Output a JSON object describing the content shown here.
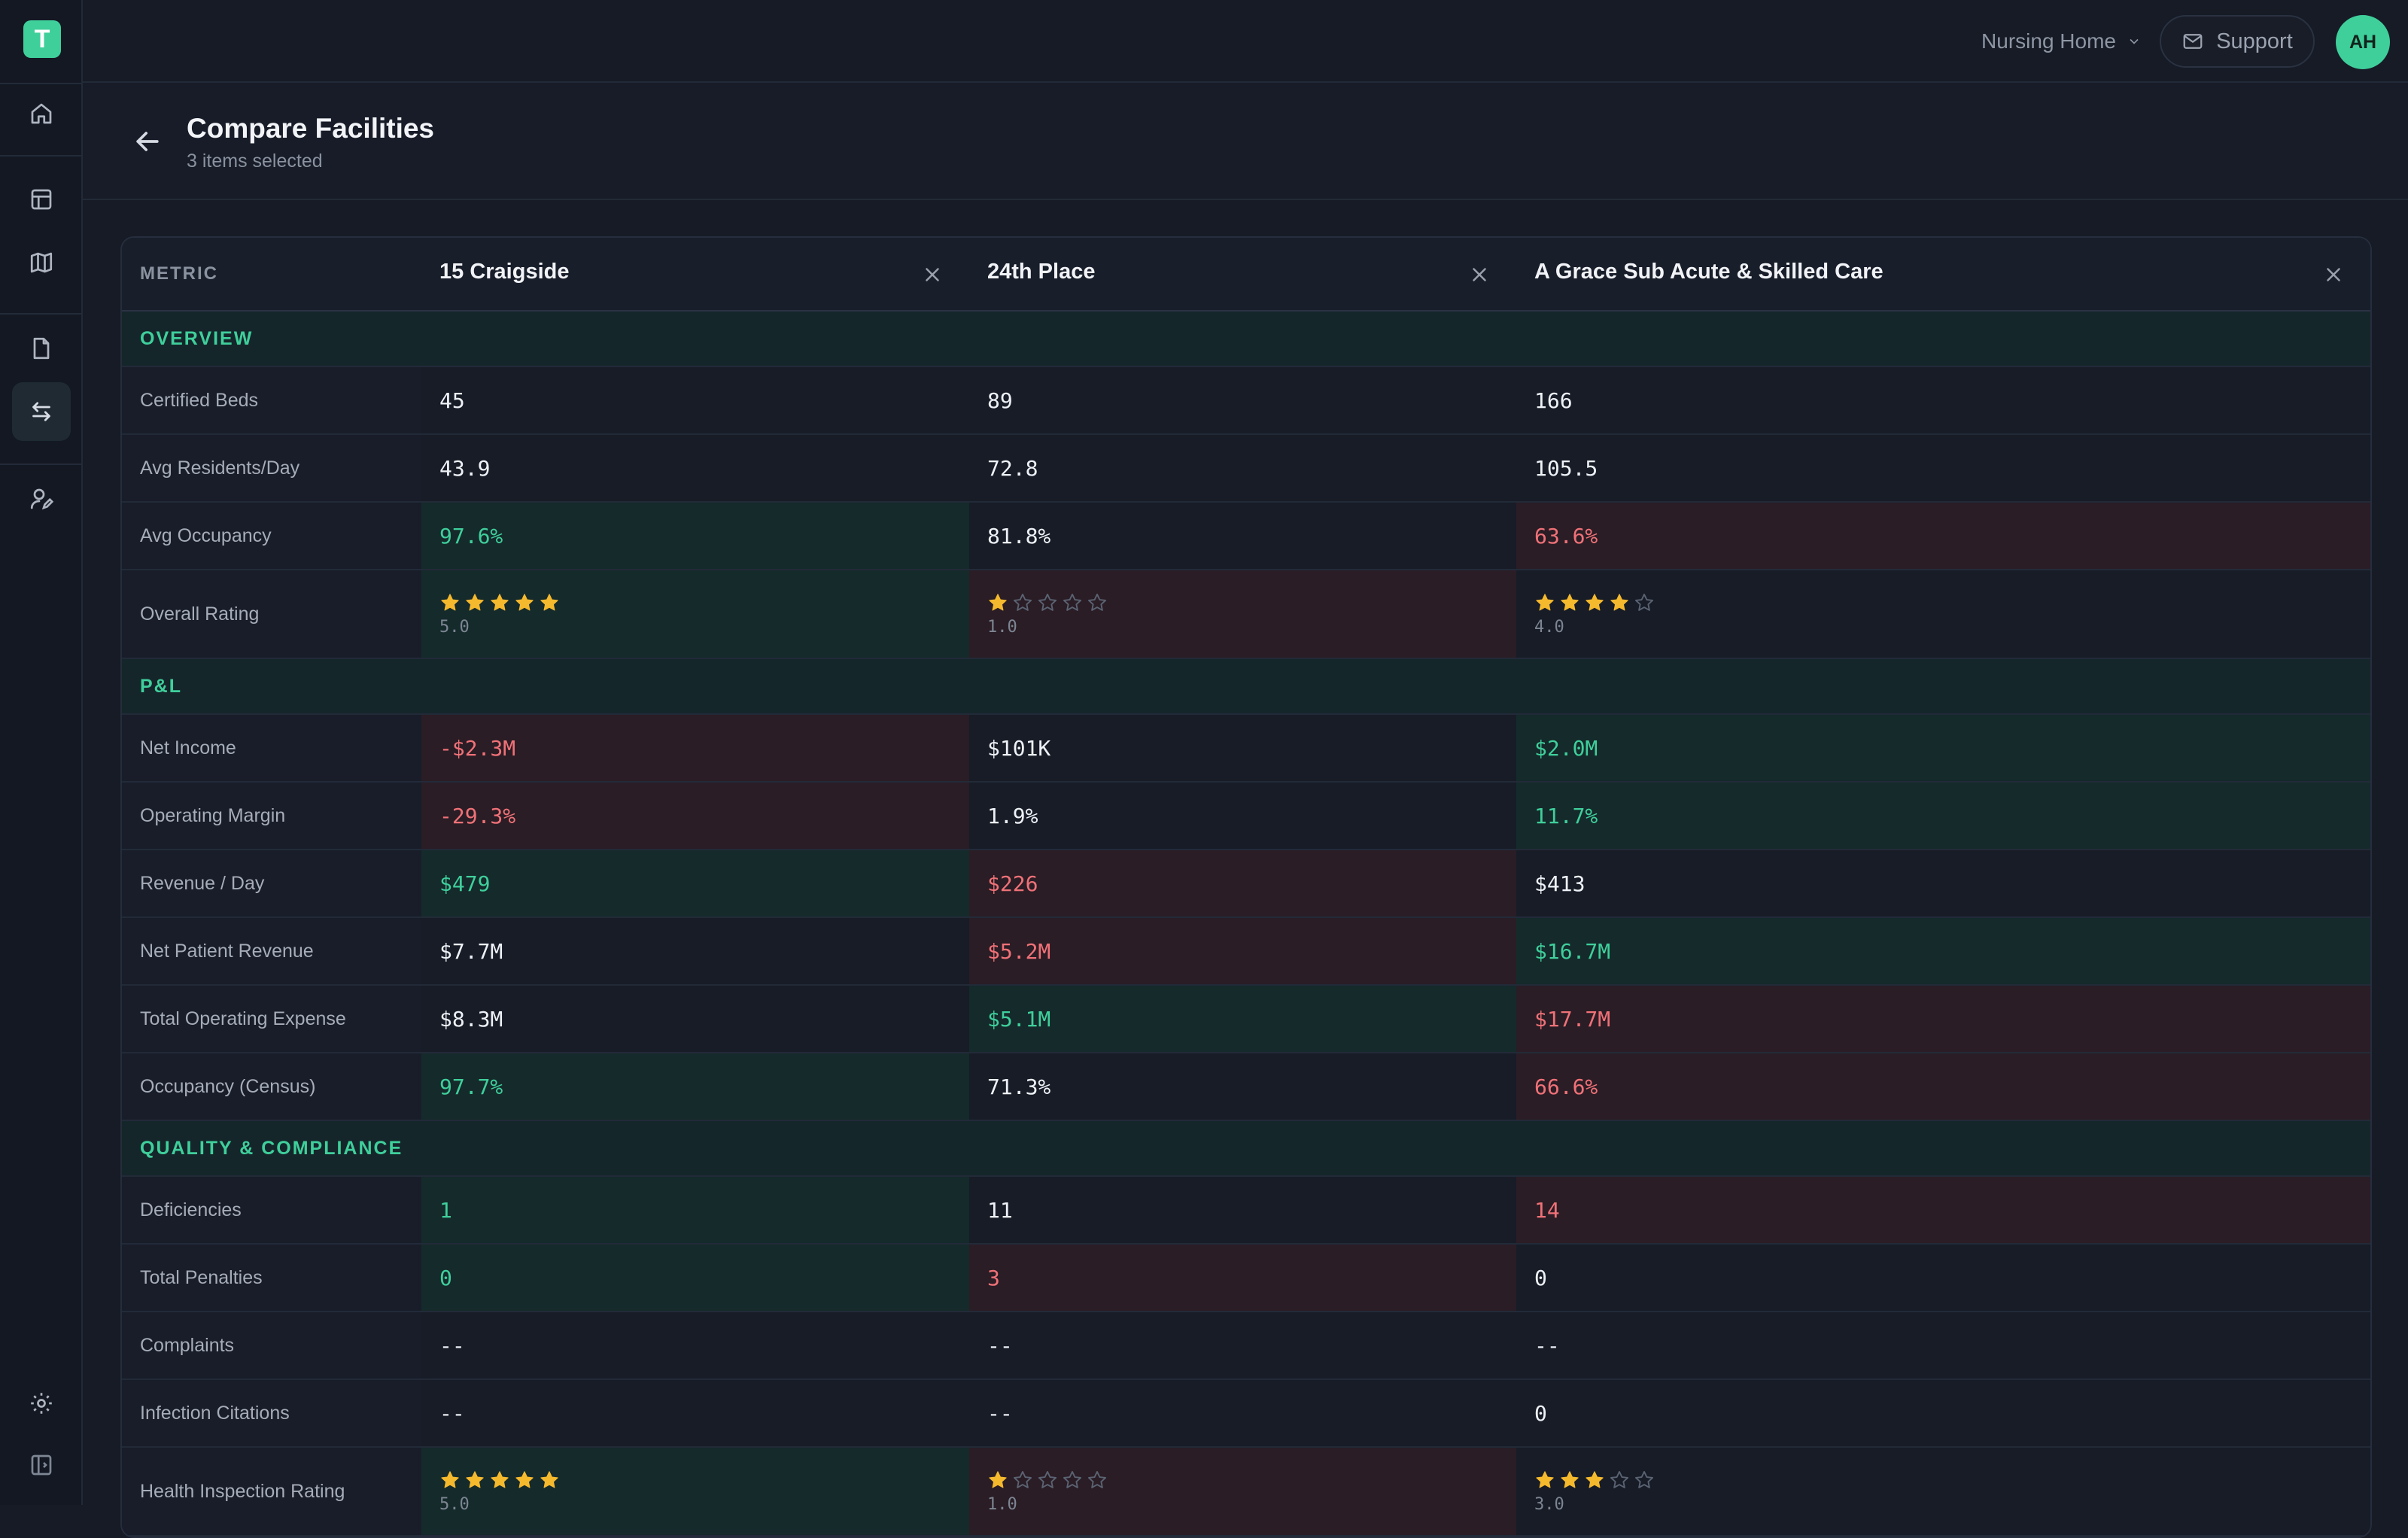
{
  "app": {
    "logo_letter": "T"
  },
  "topbar": {
    "context_select": "Nursing Home",
    "support_label": "Support",
    "avatar_initials": "AH"
  },
  "header": {
    "title": "Compare Facilities",
    "subtitle": "3 items selected"
  },
  "table": {
    "metric_header": "METRIC",
    "facilities": [
      "15 Craigside",
      "24th Place",
      "A Grace Sub Acute & Skilled Care"
    ],
    "sections": [
      {
        "title": "OVERVIEW",
        "rows": [
          {
            "label": "Certified Beds",
            "cells": [
              {
                "v": "45",
                "s": "neu"
              },
              {
                "v": "89",
                "s": "neu"
              },
              {
                "v": "166",
                "s": "neu"
              }
            ]
          },
          {
            "label": "Avg Residents/Day",
            "cells": [
              {
                "v": "43.9",
                "s": "neu"
              },
              {
                "v": "72.8",
                "s": "neu"
              },
              {
                "v": "105.5",
                "s": "neu"
              }
            ]
          },
          {
            "label": "Avg Occupancy",
            "cells": [
              {
                "v": "97.6%",
                "s": "good"
              },
              {
                "v": "81.8%",
                "s": "neu"
              },
              {
                "v": "63.6%",
                "s": "bad"
              }
            ]
          },
          {
            "label": "Overall Rating",
            "rating": true,
            "cells": [
              {
                "stars": 5,
                "v": "5.0",
                "s": "good"
              },
              {
                "stars": 1,
                "v": "1.0",
                "s": "bad"
              },
              {
                "stars": 4,
                "v": "4.0",
                "s": "neu"
              }
            ]
          }
        ]
      },
      {
        "title": "P&L",
        "rows": [
          {
            "label": "Net Income",
            "cells": [
              {
                "v": "-$2.3M",
                "s": "bad"
              },
              {
                "v": "$101K",
                "s": "neu"
              },
              {
                "v": "$2.0M",
                "s": "good"
              }
            ]
          },
          {
            "label": "Operating Margin",
            "cells": [
              {
                "v": "-29.3%",
                "s": "bad"
              },
              {
                "v": "1.9%",
                "s": "neu"
              },
              {
                "v": "11.7%",
                "s": "good"
              }
            ]
          },
          {
            "label": "Revenue / Day",
            "cells": [
              {
                "v": "$479",
                "s": "good"
              },
              {
                "v": "$226",
                "s": "bad"
              },
              {
                "v": "$413",
                "s": "neu"
              }
            ]
          },
          {
            "label": "Net Patient Revenue",
            "cells": [
              {
                "v": "$7.7M",
                "s": "neu"
              },
              {
                "v": "$5.2M",
                "s": "bad"
              },
              {
                "v": "$16.7M",
                "s": "good"
              }
            ]
          },
          {
            "label": "Total Operating Expense",
            "cells": [
              {
                "v": "$8.3M",
                "s": "neu"
              },
              {
                "v": "$5.1M",
                "s": "good"
              },
              {
                "v": "$17.7M",
                "s": "bad"
              }
            ]
          },
          {
            "label": "Occupancy (Census)",
            "cells": [
              {
                "v": "97.7%",
                "s": "good"
              },
              {
                "v": "71.3%",
                "s": "neu"
              },
              {
                "v": "66.6%",
                "s": "bad"
              }
            ]
          }
        ]
      },
      {
        "title": "QUALITY & COMPLIANCE",
        "rows": [
          {
            "label": "Deficiencies",
            "cells": [
              {
                "v": "1",
                "s": "good"
              },
              {
                "v": "11",
                "s": "neu"
              },
              {
                "v": "14",
                "s": "bad"
              }
            ]
          },
          {
            "label": "Total Penalties",
            "cells": [
              {
                "v": "0",
                "s": "good"
              },
              {
                "v": "3",
                "s": "bad"
              },
              {
                "v": "0",
                "s": "neu"
              }
            ]
          },
          {
            "label": "Complaints",
            "cells": [
              {
                "v": "--",
                "s": "neu"
              },
              {
                "v": "--",
                "s": "neu"
              },
              {
                "v": "--",
                "s": "neu"
              }
            ]
          },
          {
            "label": "Infection Citations",
            "cells": [
              {
                "v": "--",
                "s": "neu"
              },
              {
                "v": "--",
                "s": "neu"
              },
              {
                "v": "0",
                "s": "neu"
              }
            ]
          },
          {
            "label": "Health Inspection Rating",
            "rating": true,
            "cells": [
              {
                "stars": 5,
                "v": "5.0",
                "s": "good"
              },
              {
                "stars": 1,
                "v": "1.0",
                "s": "bad"
              },
              {
                "stars": 3,
                "v": "3.0",
                "s": "neu"
              }
            ]
          }
        ]
      }
    ]
  },
  "colors": {
    "accent": "#3fcf9b",
    "good": "#3fcf9b",
    "bad": "#f07178",
    "star": "#f5b92e",
    "star_empty": "#5b6373"
  },
  "icons": [
    "home-icon",
    "table-icon",
    "map-icon",
    "document-icon",
    "compare-icon",
    "user-edit-icon",
    "settings-icon",
    "sidebar-toggle-icon",
    "mail-icon",
    "chevron-down-icon",
    "arrow-left-icon",
    "close-icon",
    "star-icon"
  ]
}
